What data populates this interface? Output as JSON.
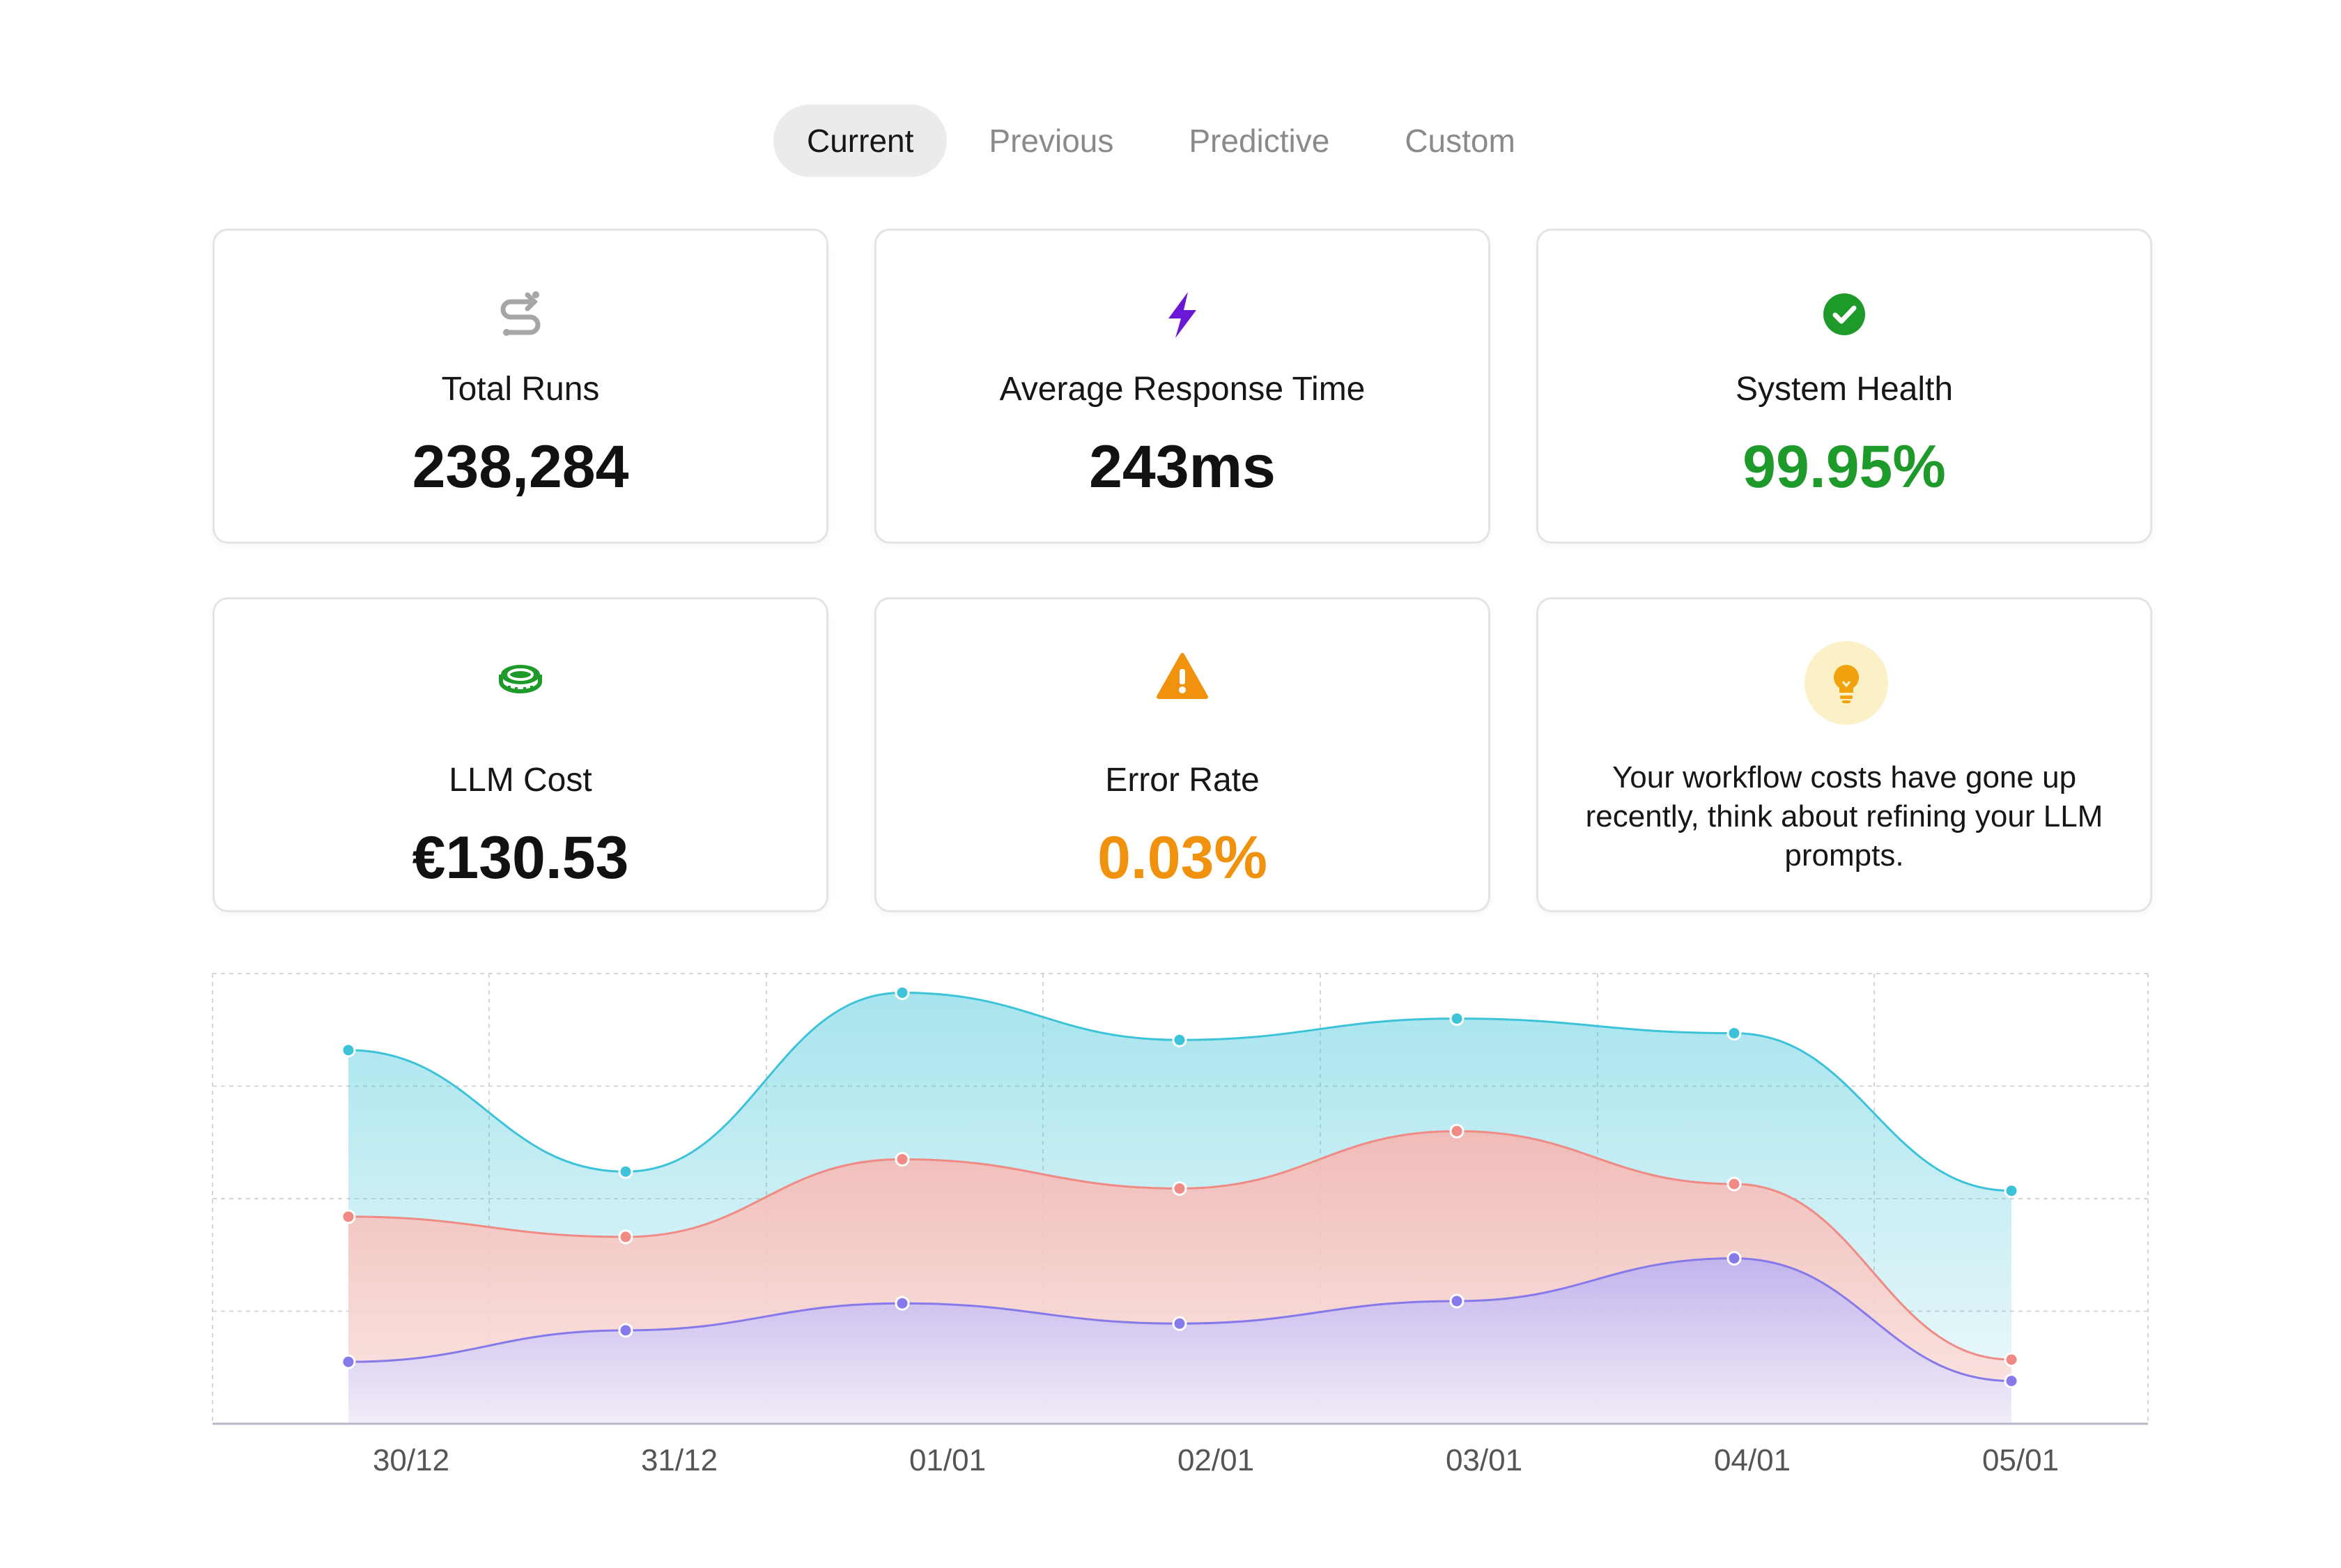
{
  "tabs": [
    {
      "label": "Current",
      "active": true
    },
    {
      "label": "Previous",
      "active": false
    },
    {
      "label": "Predictive",
      "active": false
    },
    {
      "label": "Custom",
      "active": false
    }
  ],
  "cards": {
    "total_runs": {
      "label": "Total Runs",
      "value": "238,284",
      "icon": "repeat-icon"
    },
    "avg_response": {
      "label": "Average Response Time",
      "value": "243ms",
      "icon": "lightning-icon"
    },
    "system_health": {
      "label": "System Health",
      "value": "99.95%",
      "icon": "check-circle-icon"
    },
    "llm_cost": {
      "label": "LLM Cost",
      "value": "€130.53",
      "icon": "coin-icon"
    },
    "error_rate": {
      "label": "Error Rate",
      "value": "0.03%",
      "icon": "warning-icon"
    },
    "tip": {
      "text": "Your workflow costs have gone up recently, think about refining your LLM prompts.",
      "icon": "lightbulb-icon"
    }
  },
  "colors": {
    "health": "#1e9a2a",
    "error": "#f0920e",
    "lightning": "#6a17d6",
    "coin": "#1e9a2a",
    "series_cyan": "#3cc3d8",
    "series_red": "#ef8a84",
    "series_purple": "#8679ea"
  },
  "chart_data": {
    "type": "area",
    "categories": [
      "30/12",
      "31/12",
      "01/01",
      "02/01",
      "03/01",
      "04/01",
      "05/01"
    ],
    "ylim": [
      0,
      4
    ],
    "grid": true,
    "series": [
      {
        "values": [
          3.32,
          2.24,
          3.83,
          3.41,
          3.6,
          3.47,
          2.07
        ]
      },
      {
        "values": [
          1.84,
          1.66,
          2.35,
          2.09,
          2.6,
          2.13,
          0.57
        ]
      },
      {
        "values": [
          0.55,
          0.83,
          1.07,
          0.89,
          1.09,
          1.47,
          0.38
        ]
      }
    ]
  }
}
